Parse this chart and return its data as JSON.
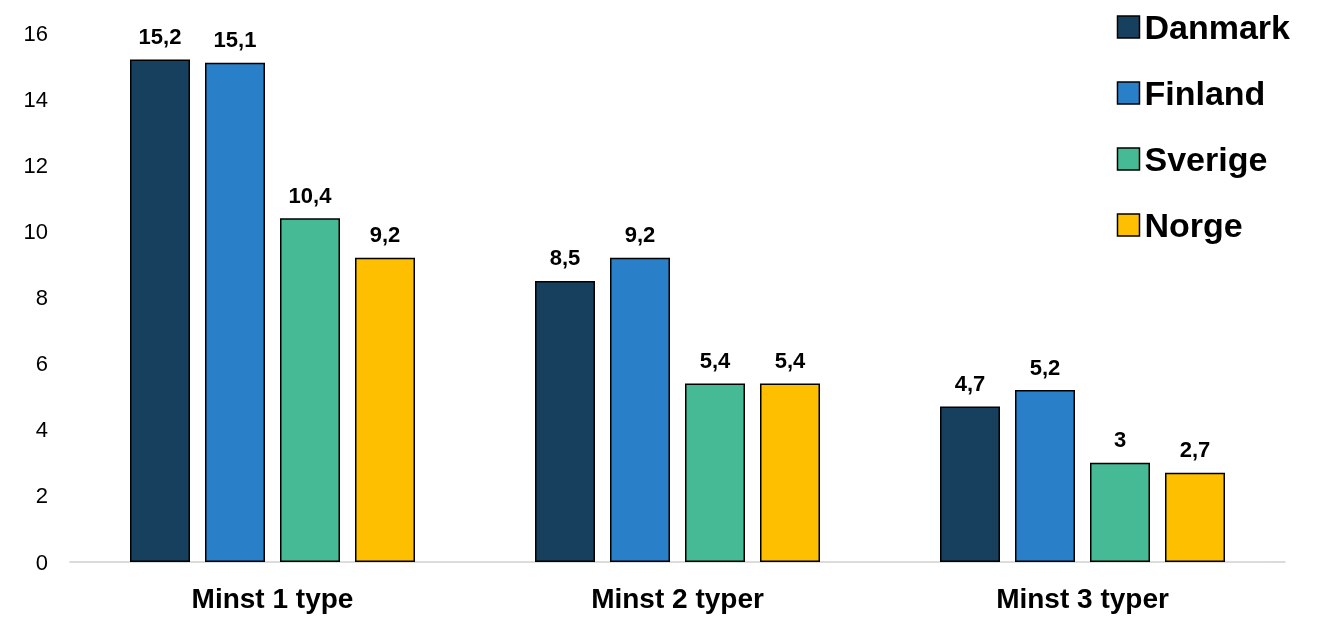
{
  "chart_data": {
    "type": "bar",
    "categories": [
      "Minst 1 type",
      "Minst 2 typer",
      "Minst 3 typer"
    ],
    "series": [
      {
        "name": "Danmark",
        "color": "#17405f",
        "values": [
          15.2,
          8.5,
          4.7
        ],
        "value_labels": [
          "15,2",
          "8,5",
          "4,7"
        ]
      },
      {
        "name": "Finland",
        "color": "#2a7fc9",
        "values": [
          15.1,
          9.2,
          5.2
        ],
        "value_labels": [
          "15,1",
          "9,2",
          "5,2"
        ]
      },
      {
        "name": "Sverige",
        "color": "#45ba94",
        "values": [
          10.4,
          5.4,
          3
        ],
        "value_labels": [
          "10,4",
          "5,4",
          "3"
        ]
      },
      {
        "name": "Norge",
        "color": "#fdbf00",
        "values": [
          9.2,
          5.4,
          2.7
        ],
        "value_labels": [
          "9,2",
          "5,4",
          "2,7"
        ]
      }
    ],
    "ylim": [
      0,
      16
    ],
    "yticks": [
      0,
      2,
      4,
      6,
      8,
      10,
      12,
      14,
      16
    ],
    "grid": false,
    "legend": "top right"
  }
}
